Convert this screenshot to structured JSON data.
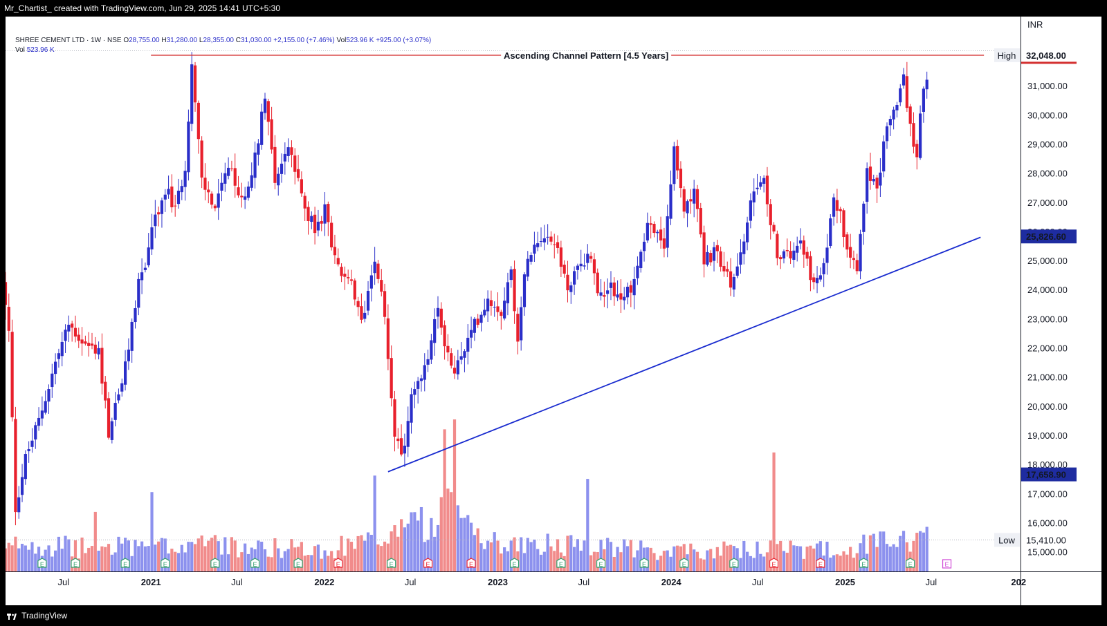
{
  "header": {
    "attribution": "Mr_Chartist_ created with TradingView.com, Jun 29, 2025 14:41 UTC+5:30"
  },
  "legend": {
    "symbol": "SHREE CEMENT LTD · 1W · NSE",
    "o_label": "O",
    "o_value": "28,755.00",
    "h_label": "H",
    "h_value": "31,280.00",
    "l_label": "L",
    "l_value": "28,355.00",
    "c_label": "C",
    "c_value": "31,030.00",
    "change": "+2,155.00 (+7.46%)",
    "vol_label": "Vol",
    "vol_value": "523.96 K",
    "vol_change": "+925.00 (+3.07%)",
    "vol_row_label": "Vol",
    "vol_row_value": "523.96 K"
  },
  "footer": {
    "brand": "TradingView"
  },
  "colors": {
    "up": "#2a2ec9",
    "down": "#e8202c",
    "vol_up": "#8c91ee",
    "vol_down": "#f18b8b",
    "trendline": "#1a2ccf",
    "resistance": "#d32f2f",
    "label_blue": "#1e2ca0",
    "label_red": "#d32f2f"
  },
  "chart_data": {
    "type": "candlestick",
    "currency": "INR",
    "y_axis": {
      "ticks": [
        15000,
        16000,
        17000,
        18000,
        19000,
        20000,
        21000,
        22000,
        23000,
        24000,
        25000,
        26000,
        27000,
        28000,
        29000,
        30000,
        31000
      ],
      "tick_labels": [
        "15,000.00",
        "16,000.00",
        "17,000.00",
        "18,000.00",
        "19,000.00",
        "20,000.00",
        "21,000.00",
        "22,000.00",
        "23,000.00",
        "24,000.00",
        "25,000.00",
        "26,000.00",
        "27,000.00",
        "28,000.00",
        "29,000.00",
        "30,000.00",
        "31,000.00"
      ],
      "range": [
        14400,
        32900
      ]
    },
    "x_axis": {
      "range": [
        "2020-03-01",
        "2026-01-05"
      ],
      "tick_dates": [
        "2020-07-01",
        "2021-01-01",
        "2021-07-01",
        "2022-01-01",
        "2022-07-01",
        "2023-01-01",
        "2023-07-01",
        "2024-01-01",
        "2024-07-01",
        "2025-01-01",
        "2025-07-01",
        "2026-01-01"
      ],
      "tick_labels": [
        "Jul",
        "2021",
        "Jul",
        "2022",
        "Jul",
        "2023",
        "Jul",
        "2024",
        "Jul",
        "2025",
        "Jul",
        "202"
      ],
      "tick_is_year": [
        false,
        true,
        false,
        true,
        false,
        true,
        false,
        true,
        false,
        true,
        false,
        true
      ]
    },
    "price_path": [
      [
        "2020-03-01",
        24300
      ],
      [
        "2020-03-15",
        22500
      ],
      [
        "2020-03-29",
        16500
      ],
      [
        "2020-04-19",
        18200
      ],
      [
        "2020-05-17",
        19500
      ],
      [
        "2020-06-21",
        21500
      ],
      [
        "2020-07-19",
        22800
      ],
      [
        "2020-08-23",
        22100
      ],
      [
        "2020-09-20",
        21900
      ],
      [
        "2020-10-11",
        19100
      ],
      [
        "2020-11-15",
        21300
      ],
      [
        "2020-12-13",
        24300
      ],
      [
        "2020-12-27",
        24800
      ],
      [
        "2021-01-10",
        26200
      ],
      [
        "2021-01-24",
        26500
      ],
      [
        "2021-02-07",
        27500
      ],
      [
        "2021-02-28",
        26700
      ],
      [
        "2021-03-21",
        28300
      ],
      [
        "2021-04-04",
        31700
      ],
      [
        "2021-04-25",
        27700
      ],
      [
        "2021-05-23",
        26800
      ],
      [
        "2021-06-20",
        28200
      ],
      [
        "2021-07-18",
        27000
      ],
      [
        "2021-08-15",
        28500
      ],
      [
        "2021-09-05",
        30800
      ],
      [
        "2021-09-26",
        27800
      ],
      [
        "2021-10-24",
        28900
      ],
      [
        "2021-11-21",
        27200
      ],
      [
        "2021-12-19",
        26000
      ],
      [
        "2022-01-09",
        26700
      ],
      [
        "2022-02-06",
        24700
      ],
      [
        "2022-03-06",
        24100
      ],
      [
        "2022-03-27",
        22800
      ],
      [
        "2022-04-24",
        25200
      ],
      [
        "2022-05-15",
        23000
      ],
      [
        "2022-06-05",
        19200
      ],
      [
        "2022-06-19",
        18100
      ],
      [
        "2022-07-10",
        20300
      ],
      [
        "2022-08-07",
        21200
      ],
      [
        "2022-09-04",
        23300
      ],
      [
        "2022-10-02",
        21200
      ],
      [
        "2022-10-23",
        21600
      ],
      [
        "2022-11-20",
        22800
      ],
      [
        "2022-12-18",
        23700
      ],
      [
        "2023-01-15",
        23300
      ],
      [
        "2023-02-05",
        24600
      ],
      [
        "2023-02-19",
        22400
      ],
      [
        "2023-03-12",
        25300
      ],
      [
        "2023-04-16",
        26000
      ],
      [
        "2023-05-14",
        25400
      ],
      [
        "2023-06-04",
        24000
      ],
      [
        "2023-06-25",
        24700
      ],
      [
        "2023-07-23",
        25300
      ],
      [
        "2023-08-06",
        23800
      ],
      [
        "2023-09-03",
        24200
      ],
      [
        "2023-09-24",
        23600
      ],
      [
        "2023-10-22",
        24300
      ],
      [
        "2023-11-19",
        26300
      ],
      [
        "2023-12-24",
        25500
      ],
      [
        "2024-01-14",
        28700
      ],
      [
        "2024-02-04",
        26800
      ],
      [
        "2024-02-25",
        27500
      ],
      [
        "2024-03-17",
        25000
      ],
      [
        "2024-04-14",
        25300
      ],
      [
        "2024-05-12",
        24100
      ],
      [
        "2024-06-09",
        25700
      ],
      [
        "2024-06-30",
        27400
      ],
      [
        "2024-07-21",
        27600
      ],
      [
        "2024-08-18",
        25300
      ],
      [
        "2024-09-08",
        25100
      ],
      [
        "2024-10-06",
        25900
      ],
      [
        "2024-11-03",
        24100
      ],
      [
        "2024-11-24",
        24700
      ],
      [
        "2024-12-15",
        27400
      ],
      [
        "2025-01-12",
        25600
      ],
      [
        "2025-02-02",
        24800
      ],
      [
        "2025-02-23",
        28300
      ],
      [
        "2025-03-16",
        27300
      ],
      [
        "2025-04-06",
        29800
      ],
      [
        "2025-04-27",
        30300
      ],
      [
        "2025-05-11",
        31400
      ],
      [
        "2025-05-25",
        29500
      ],
      [
        "2025-06-08",
        28700
      ],
      [
        "2025-06-22",
        31030
      ]
    ],
    "volume_path": [
      [
        "2020-03-01",
        300
      ],
      [
        "2020-04-01",
        450
      ],
      [
        "2020-08-01",
        350
      ],
      [
        "2021-01-01",
        420
      ],
      [
        "2021-06-01",
        380
      ],
      [
        "2022-01-01",
        330
      ],
      [
        "2022-06-01",
        520
      ],
      [
        "2022-09-15",
        900
      ],
      [
        "2022-12-01",
        450
      ],
      [
        "2023-07-01",
        380
      ],
      [
        "2024-01-01",
        300
      ],
      [
        "2024-07-01",
        330
      ],
      [
        "2025-01-01",
        350
      ],
      [
        "2025-06-22",
        520
      ]
    ],
    "volume_spikes": [
      [
        "2022-04-17",
        1450
      ],
      [
        "2022-09-11",
        2150
      ],
      [
        "2022-09-25",
        1200
      ],
      [
        "2022-10-02",
        2300
      ],
      [
        "2023-07-09",
        1400
      ],
      [
        "2024-08-04",
        1800
      ],
      [
        "2022-10-09",
        1000
      ],
      [
        "2021-01-03",
        1200
      ],
      [
        "2020-09-06",
        900
      ]
    ],
    "earnings_markers": [
      [
        "2020-05-17",
        "E",
        "up"
      ],
      [
        "2020-07-26",
        "E",
        "up"
      ],
      [
        "2020-11-08",
        "E",
        "up"
      ],
      [
        "2021-01-31",
        "E",
        "up"
      ],
      [
        "2021-05-16",
        "E",
        "up"
      ],
      [
        "2021-08-08",
        "E",
        "up"
      ],
      [
        "2021-11-07",
        "E",
        "up"
      ],
      [
        "2022-01-30",
        "E",
        "down"
      ],
      [
        "2022-05-22",
        "E",
        "up"
      ],
      [
        "2022-08-07",
        "E",
        "down"
      ],
      [
        "2022-11-06",
        "E",
        "down"
      ],
      [
        "2023-02-05",
        "E",
        "up"
      ],
      [
        "2023-05-14",
        "E",
        "up"
      ],
      [
        "2023-08-06",
        "E",
        "up"
      ],
      [
        "2023-11-05",
        "E",
        "up"
      ],
      [
        "2024-01-28",
        "E",
        "up"
      ],
      [
        "2024-05-12",
        "E",
        "up"
      ],
      [
        "2024-08-04",
        "E",
        "down"
      ],
      [
        "2024-11-10",
        "E",
        "down"
      ],
      [
        "2025-02-09",
        "E",
        "up"
      ],
      [
        "2025-05-18",
        "E",
        "up"
      ],
      [
        "2025-08-03",
        "E",
        "future"
      ]
    ],
    "annotations": {
      "resistance": {
        "label": "Ascending Channel Pattern [4.5 Years]",
        "value": 32048,
        "from": "2021-01-01",
        "to": "2025-10-20"
      },
      "trendline": {
        "from": [
          "2022-05-15",
          17750
        ],
        "to": [
          "2025-10-13",
          25800
        ]
      }
    },
    "price_labels": [
      {
        "tag": "High",
        "text": "32,048.00",
        "value": 32048,
        "style": "red"
      },
      {
        "tag": "",
        "text": "25,826.60",
        "value": 25826.6,
        "style": "blue"
      },
      {
        "tag": "",
        "text": "17,658.90",
        "value": 17658.9,
        "style": "blue"
      },
      {
        "tag": "Low",
        "text": "15,410.00",
        "value": 15410,
        "style": "plain"
      }
    ]
  }
}
